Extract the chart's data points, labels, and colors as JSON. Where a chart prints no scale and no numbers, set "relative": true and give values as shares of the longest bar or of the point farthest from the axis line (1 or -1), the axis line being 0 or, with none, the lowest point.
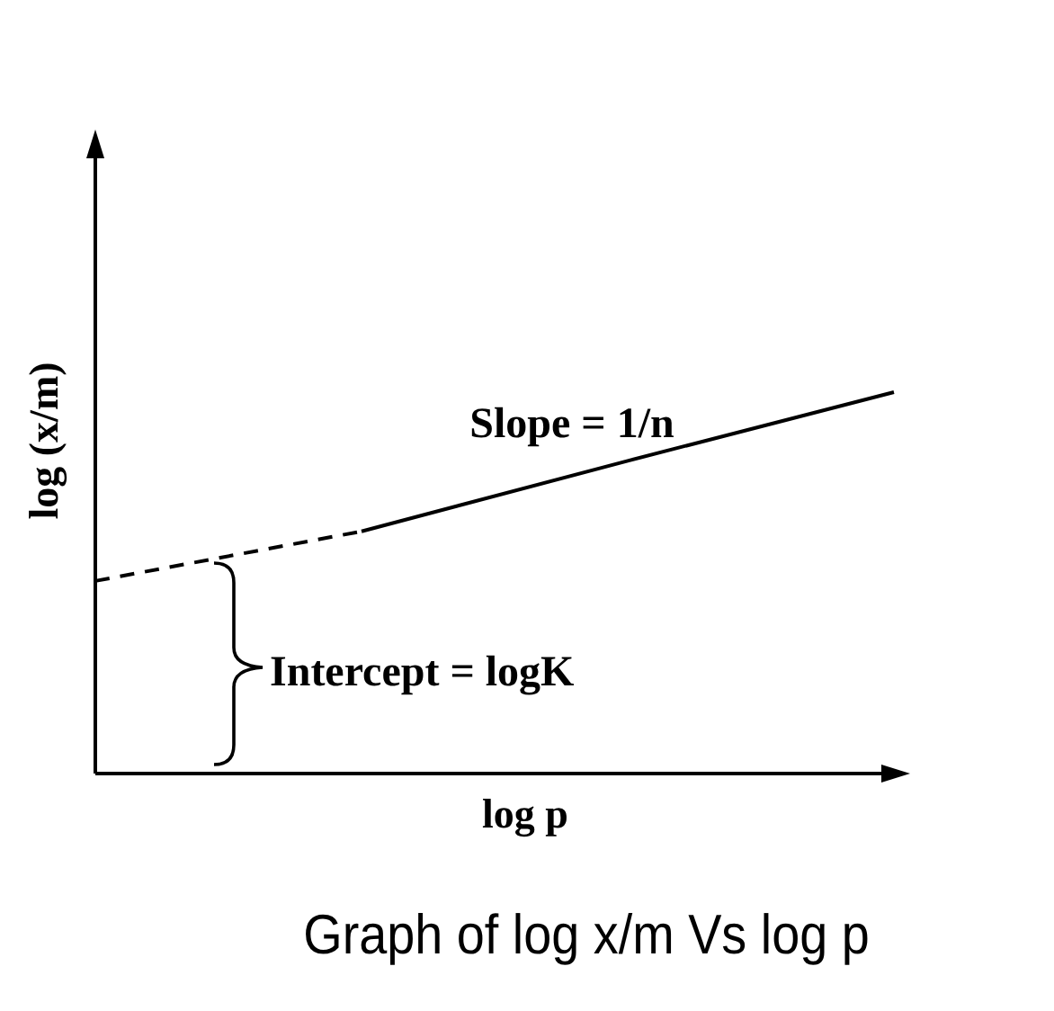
{
  "chart_data": {
    "type": "line",
    "relative": true,
    "title": "Graph of log x/m Vs log p",
    "xlabel": "log p",
    "ylabel": "log (x/m)",
    "categories": [
      null,
      null,
      null,
      null
    ],
    "series": [
      {
        "color": "#000000",
        "line_style": "dashed",
        "values": [
          0.505,
          0.635,
          null,
          null
        ]
      },
      {
        "color": "#000000",
        "line_style": "solid",
        "values": [
          null,
          0.635,
          0.82,
          1
        ]
      }
    ],
    "annotations": [
      "Slope = 1/n",
      "Intercept = logK"
    ]
  }
}
